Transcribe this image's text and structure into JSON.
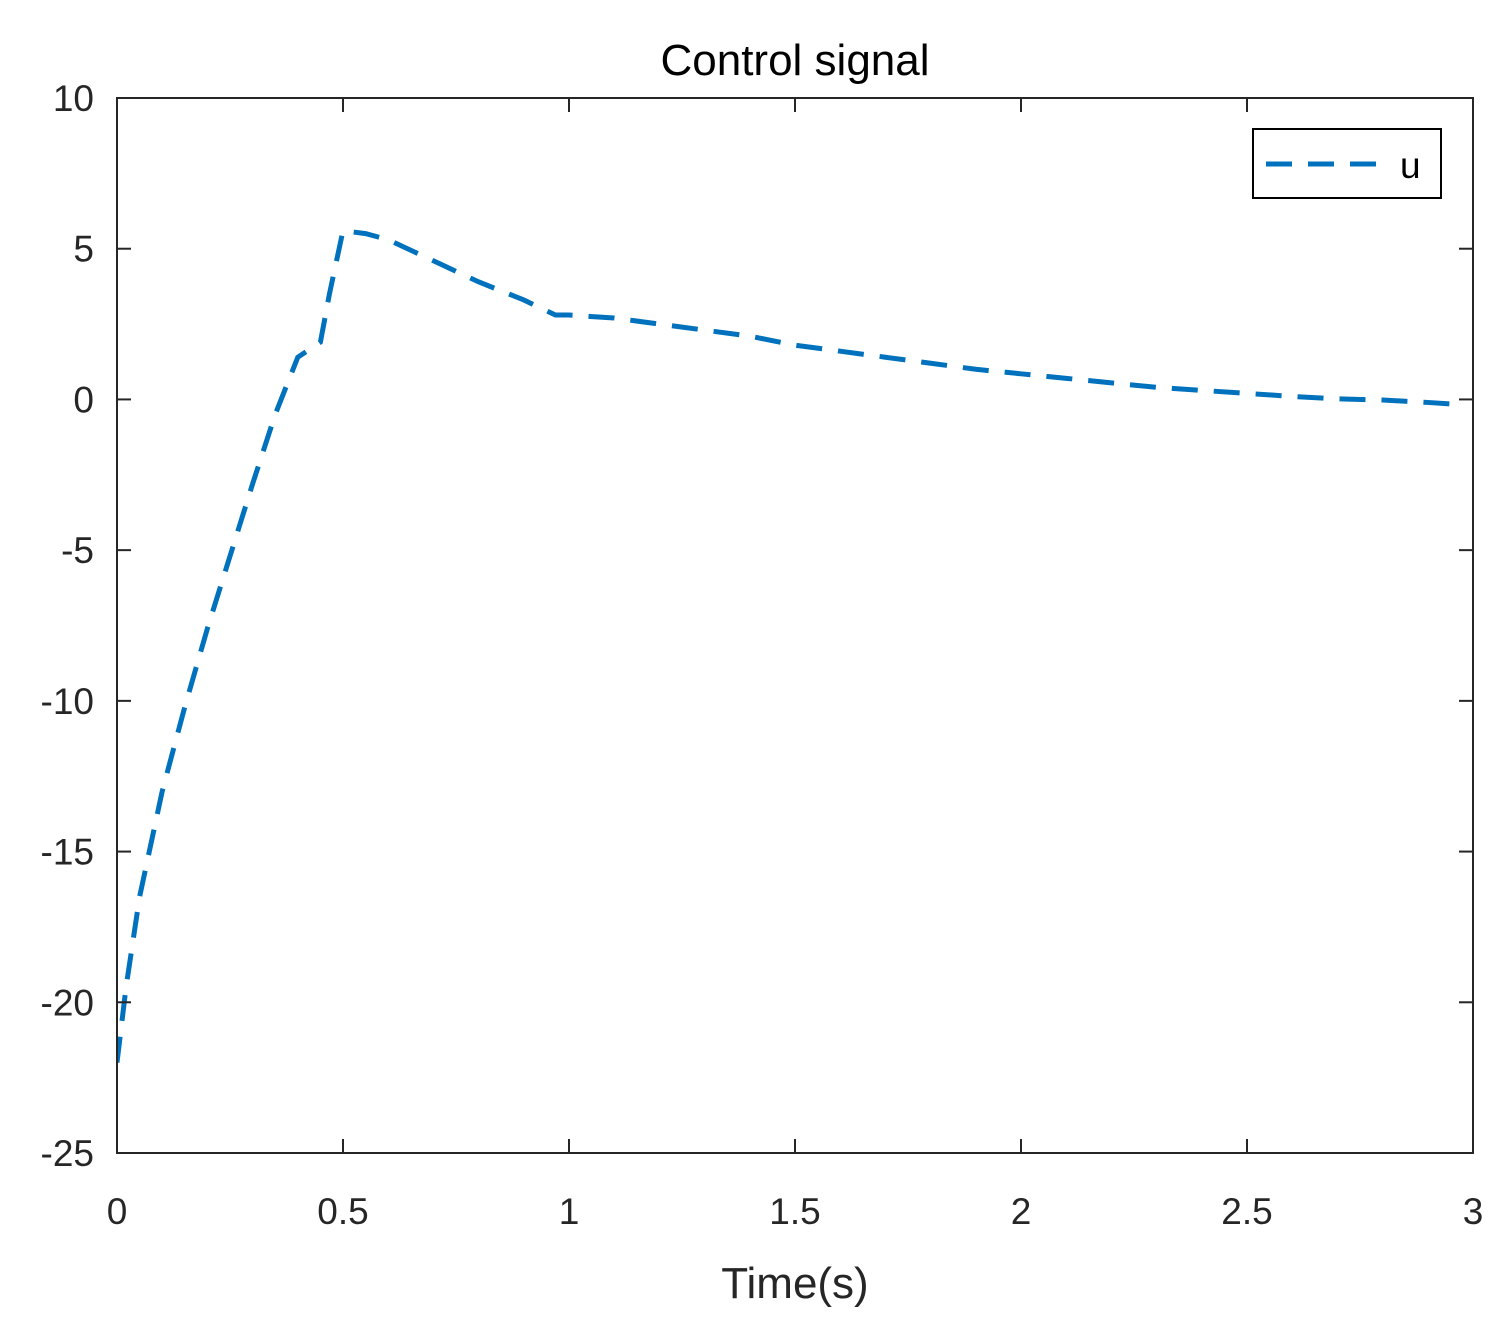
{
  "chart_data": {
    "type": "line",
    "title": "Control signal",
    "xlabel": "Time(s)",
    "ylabel": "",
    "xlim": [
      0,
      3
    ],
    "ylim": [
      -25,
      10
    ],
    "xticks": [
      0,
      0.5,
      1,
      1.5,
      2,
      2.5,
      3
    ],
    "xtick_labels": [
      "0",
      "0.5",
      "1",
      "1.5",
      "2",
      "2.5",
      "3"
    ],
    "yticks": [
      -25,
      -20,
      -15,
      -10,
      -5,
      0,
      5,
      10
    ],
    "ytick_labels": [
      "-25",
      "-20",
      "-15",
      "-10",
      "-5",
      "0",
      "5",
      "10"
    ],
    "grid": false,
    "legend": {
      "position": "top-right",
      "entries": [
        "u"
      ]
    },
    "series": [
      {
        "name": "u",
        "color": "#0072BD",
        "line_style": "dashed",
        "x": [
          0,
          0.02,
          0.05,
          0.1,
          0.15,
          0.2,
          0.25,
          0.3,
          0.35,
          0.4,
          0.45,
          0.47,
          0.5,
          0.55,
          0.6,
          0.7,
          0.8,
          0.9,
          0.97,
          1.0,
          1.1,
          1.2,
          1.3,
          1.4,
          1.5,
          1.6,
          1.7,
          1.8,
          1.9,
          2.0,
          2.1,
          2.2,
          2.3,
          2.4,
          2.5,
          2.6,
          2.7,
          2.8,
          2.9,
          2.95
        ],
        "y": [
          -22,
          -19.5,
          -16.5,
          -13,
          -10.2,
          -7.6,
          -5.2,
          -2.8,
          -0.5,
          1.4,
          1.9,
          3.5,
          5.6,
          5.5,
          5.3,
          4.6,
          3.9,
          3.3,
          2.8,
          2.8,
          2.7,
          2.5,
          2.3,
          2.1,
          1.8,
          1.6,
          1.4,
          1.2,
          1.0,
          0.85,
          0.7,
          0.55,
          0.4,
          0.3,
          0.2,
          0.1,
          0.02,
          -0.02,
          -0.1,
          -0.15
        ]
      }
    ]
  }
}
